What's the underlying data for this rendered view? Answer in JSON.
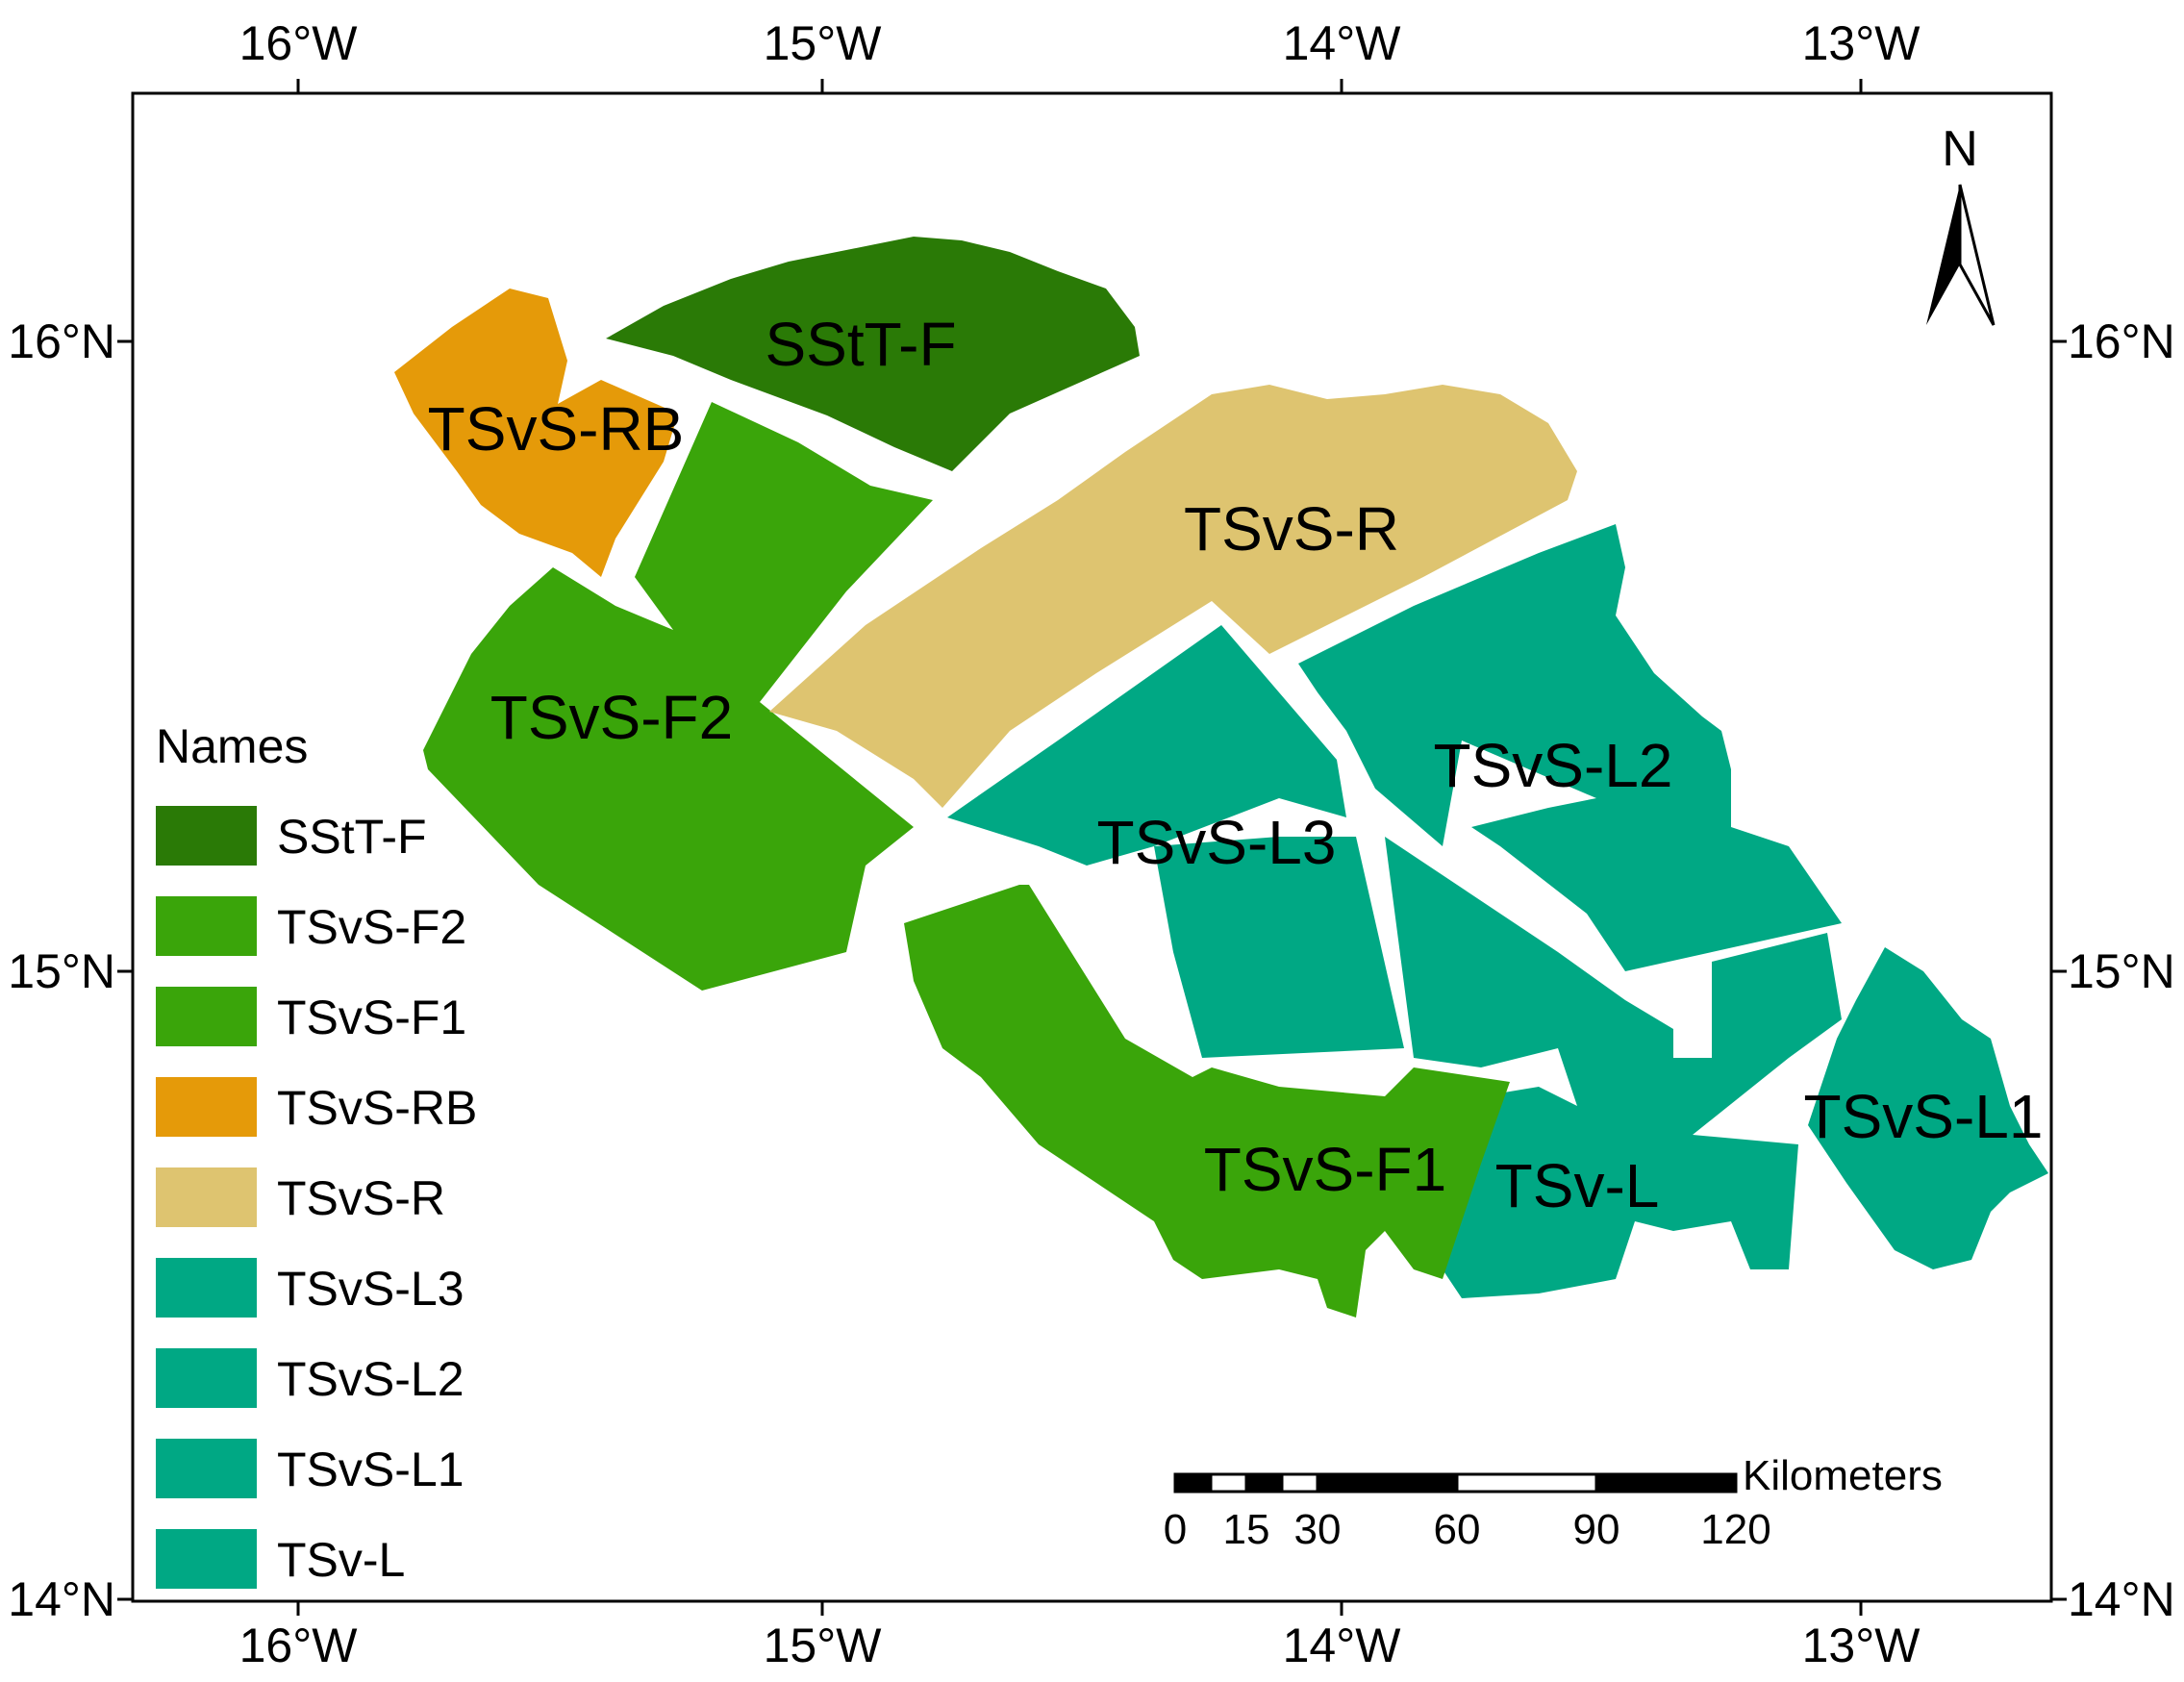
{
  "map": {
    "longitude_ticks": [
      "16°W",
      "15°W",
      "14°W",
      "13°W"
    ],
    "latitude_ticks": [
      "16°N",
      "15°N",
      "14°N"
    ],
    "regions": [
      {
        "id": "sstt-f",
        "label": "SStT-F",
        "color": "#2a7a06"
      },
      {
        "id": "tsvs-rb",
        "label": "TSvS-RB",
        "color": "#e59a09"
      },
      {
        "id": "tsvs-f2",
        "label": "TSvS-F2",
        "color": "#3aa50a"
      },
      {
        "id": "tsvs-r",
        "label": "TSvS-R",
        "color": "#dec470"
      },
      {
        "id": "tsvs-l2",
        "label": "TSvS-L2",
        "color": "#00a884"
      },
      {
        "id": "tsvs-l3",
        "label": "TSvS-L3",
        "color": "#00a884"
      },
      {
        "id": "tsvs-f1",
        "label": "TSvS-F1",
        "color": "#3aa50a"
      },
      {
        "id": "tsv-l",
        "label": "TSv-L",
        "color": "#00a884"
      },
      {
        "id": "tsvs-l1",
        "label": "TSvS-L1",
        "color": "#00a884"
      }
    ]
  },
  "legend": {
    "title": "Names",
    "items": [
      {
        "label": "SStT-F",
        "color": "#2a7a06"
      },
      {
        "label": "TSvS-F2",
        "color": "#3aa50a"
      },
      {
        "label": "TSvS-F1",
        "color": "#3aa50a"
      },
      {
        "label": "TSvS-RB",
        "color": "#e59a09"
      },
      {
        "label": "TSvS-R",
        "color": "#dec470"
      },
      {
        "label": "TSvS-L3",
        "color": "#00a884"
      },
      {
        "label": "TSvS-L2",
        "color": "#00a884"
      },
      {
        "label": "TSvS-L1",
        "color": "#00a884"
      },
      {
        "label": "TSv-L",
        "color": "#00a884"
      }
    ]
  },
  "north_arrow": {
    "label": "N",
    "icon": "north-arrow-icon"
  },
  "scale_bar": {
    "unit": "Kilometers",
    "ticks": [
      "0",
      "15",
      "30",
      "60",
      "90",
      "120"
    ]
  }
}
